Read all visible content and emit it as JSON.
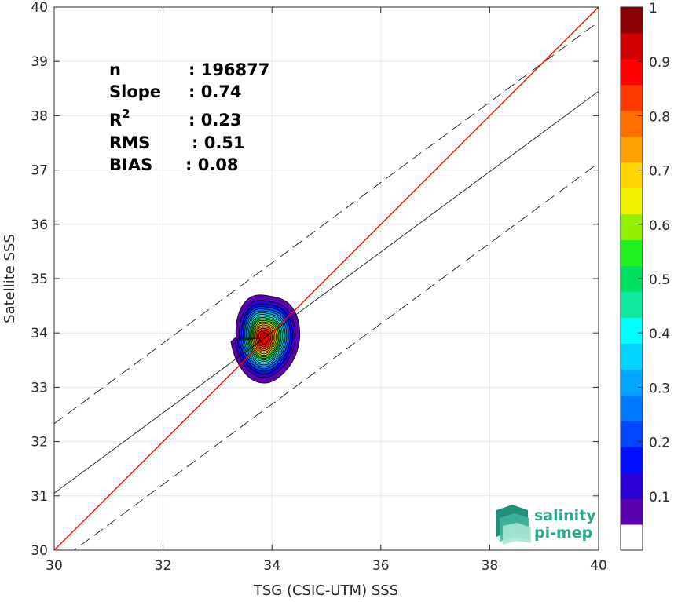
{
  "chart_data": {
    "type": "heatmap",
    "title": "",
    "xlabel": "TSG (CSIC-UTM) SSS",
    "ylabel": "Satellite SSS",
    "xlim": [
      30,
      40
    ],
    "ylim": [
      30,
      40
    ],
    "xticks": [
      30,
      32,
      34,
      36,
      38,
      40
    ],
    "yticks": [
      30,
      31,
      32,
      33,
      34,
      35,
      36,
      37,
      38,
      39,
      40
    ],
    "grid": true,
    "reference_line": {
      "name": "1:1",
      "color": "#ff0000",
      "x": [
        30,
        40
      ],
      "y": [
        30,
        40
      ]
    },
    "regression_line": {
      "color": "#000000",
      "x": [
        30,
        40
      ],
      "y": [
        31.05,
        38.45
      ]
    },
    "dashed_lines": [
      {
        "color": "#000000",
        "x": [
          30,
          40
        ],
        "y": [
          32.33,
          39.73
        ]
      },
      {
        "color": "#000000",
        "x": [
          30,
          40
        ],
        "y": [
          29.73,
          37.13
        ]
      }
    ],
    "density_peak": {
      "x": 33.85,
      "y": 33.9
    },
    "density_levels": [
      0.05,
      0.1,
      0.15,
      0.2,
      0.25,
      0.3,
      0.35,
      0.4,
      0.45,
      0.5,
      0.55,
      0.6,
      0.65,
      0.7,
      0.75,
      0.8,
      0.85,
      0.9,
      0.95
    ],
    "stats": [
      {
        "label": "n",
        "value": ": 196877"
      },
      {
        "label": "Slope",
        "value": ": 0.74"
      },
      {
        "label": "R",
        "sup": "2",
        "value": ": 0.23"
      },
      {
        "label": "RMS",
        "value": ": 0.51"
      },
      {
        "label": "BIAS",
        "value": ": 0.08"
      }
    ],
    "colorbar": {
      "min": 0,
      "max": 1,
      "ticks": [
        0.1,
        0.2,
        0.3,
        0.4,
        0.5,
        0.6,
        0.7,
        0.8,
        0.9,
        1
      ],
      "tick_labels": [
        "0.1",
        "0.2",
        "0.3",
        "0.4",
        "0.5",
        "0.6",
        "0.7",
        "0.8",
        "0.9",
        "1"
      ],
      "colors": [
        "#ffffff",
        "#5c00b0",
        "#2b00d4",
        "#0010ff",
        "#0045ff",
        "#0078ff",
        "#00a6ff",
        "#00d4ff",
        "#00ffff",
        "#10e8a0",
        "#00e060",
        "#20f020",
        "#90f000",
        "#f0f000",
        "#ffd400",
        "#ffa000",
        "#ff7000",
        "#ff3a00",
        "#ff0000",
        "#d00000",
        "#8b0000"
      ]
    }
  },
  "logo": {
    "line1": "salinity",
    "line2": "pi-mep",
    "color": "#2aa88f"
  }
}
